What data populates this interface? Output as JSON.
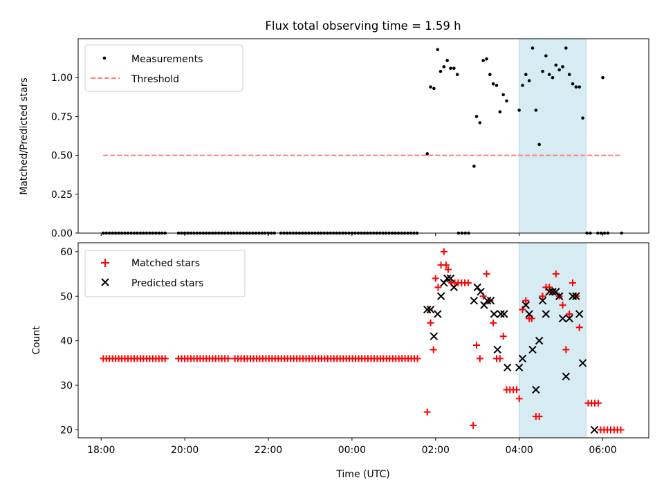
{
  "chart_data": [
    {
      "type": "scatter",
      "title": "Flux total observing time = 1.59 h",
      "xlabel": "",
      "ylabel": "Matched/Predicted stars",
      "xlim": [
        -0.55,
        13.1
      ],
      "ylim": [
        0,
        1.25
      ],
      "yticks": [
        0,
        0.25,
        0.5,
        0.75,
        1.0
      ],
      "ytick_labels": [
        "0.00",
        "0.25",
        "0.50",
        "0.75",
        "1.00"
      ],
      "xticks": [
        0,
        2,
        4,
        6,
        8,
        10,
        12
      ],
      "legend": {
        "position": "top-left",
        "entries": [
          "Measurements",
          "Threshold"
        ]
      },
      "shaded_region": {
        "x_start": 10.0,
        "x_end": 11.6,
        "color": "#add8e6"
      },
      "threshold": {
        "name": "Threshold",
        "y": 0.5,
        "x_start": 0.05,
        "x_end": 12.45,
        "color": "#ff7f7f"
      },
      "series": [
        {
          "name": "Measurements",
          "color": "#000000",
          "marker": "dot",
          "zero_run_segments": [
            [
              0.05,
              1.6
            ],
            [
              1.85,
              4.2
            ],
            [
              4.3,
              7.6
            ]
          ],
          "zero_run_step": 0.074,
          "zero_points": [
            8.55,
            8.63,
            8.71,
            8.79,
            11.62,
            11.7,
            11.88,
            11.96,
            12.04,
            12.12,
            12.45
          ],
          "points": [
            [
              7.8,
              0.51
            ],
            [
              7.88,
              0.94
            ],
            [
              7.96,
              0.93
            ],
            [
              8.05,
              1.18
            ],
            [
              8.12,
              1.04
            ],
            [
              8.2,
              1.07
            ],
            [
              8.28,
              1.11
            ],
            [
              8.36,
              1.06
            ],
            [
              8.44,
              1.06
            ],
            [
              8.52,
              1.02
            ],
            [
              8.92,
              0.43
            ],
            [
              8.98,
              0.75
            ],
            [
              9.06,
              0.71
            ],
            [
              9.14,
              1.11
            ],
            [
              9.22,
              1.12
            ],
            [
              9.3,
              1.02
            ],
            [
              9.38,
              0.96
            ],
            [
              9.46,
              0.95
            ],
            [
              9.54,
              0.78
            ],
            [
              9.62,
              0.89
            ],
            [
              9.7,
              0.85
            ],
            [
              10.0,
              0.79
            ],
            [
              10.08,
              0.95
            ],
            [
              10.16,
              1.02
            ],
            [
              10.24,
              0.98
            ],
            [
              10.32,
              1.19
            ],
            [
              10.4,
              0.79
            ],
            [
              10.48,
              0.57
            ],
            [
              10.56,
              1.04
            ],
            [
              10.64,
              1.14
            ],
            [
              10.72,
              1.02
            ],
            [
              10.8,
              1.0
            ],
            [
              10.88,
              1.08
            ],
            [
              10.96,
              1.05
            ],
            [
              11.04,
              1.07
            ],
            [
              11.12,
              1.19
            ],
            [
              11.2,
              1.02
            ],
            [
              11.28,
              0.96
            ],
            [
              11.36,
              0.94
            ],
            [
              11.44,
              0.94
            ],
            [
              11.52,
              0.74
            ],
            [
              12.0,
              1.0
            ]
          ]
        }
      ]
    },
    {
      "type": "scatter",
      "title": "",
      "xlabel": "Time (UTC)",
      "ylabel": "Count",
      "xlim": [
        -0.55,
        13.1
      ],
      "ylim": [
        18.2,
        62
      ],
      "yticks": [
        20,
        30,
        40,
        50,
        60
      ],
      "ytick_labels": [
        "20",
        "30",
        "40",
        "50",
        "60"
      ],
      "xticks": [
        0,
        2,
        4,
        6,
        8,
        10,
        12
      ],
      "xtick_labels": [
        "18:00",
        "20:00",
        "22:00",
        "00:00",
        "02:00",
        "04:00",
        "06:00"
      ],
      "legend": {
        "position": "top-left",
        "entries": [
          "Matched stars",
          "Predicted stars"
        ]
      },
      "shaded_region": {
        "x_start": 10.0,
        "x_end": 11.6,
        "color": "#add8e6"
      },
      "series": [
        {
          "name": "Matched stars",
          "color": "#ff0000",
          "marker": "plus",
          "constant_runs": [
            {
              "x_start": 0.05,
              "x_end": 1.6,
              "step": 0.074,
              "y": 36
            },
            {
              "x_start": 1.85,
              "x_end": 3.1,
              "step": 0.074,
              "y": 36
            },
            {
              "x_start": 3.2,
              "x_end": 7.6,
              "step": 0.074,
              "y": 36
            },
            {
              "x_start": 11.65,
              "x_end": 11.9,
              "step": 0.08,
              "y": 26
            },
            {
              "x_start": 11.95,
              "x_end": 12.45,
              "step": 0.08,
              "y": 20
            }
          ],
          "points": [
            [
              7.8,
              24
            ],
            [
              7.85,
              47
            ],
            [
              7.88,
              44
            ],
            [
              7.95,
              38
            ],
            [
              8.0,
              54
            ],
            [
              8.06,
              52
            ],
            [
              8.13,
              57
            ],
            [
              8.2,
              60
            ],
            [
              8.25,
              57
            ],
            [
              8.3,
              56
            ],
            [
              8.38,
              53
            ],
            [
              8.46,
              53
            ],
            [
              8.54,
              53
            ],
            [
              8.62,
              53
            ],
            [
              8.7,
              53
            ],
            [
              8.78,
              53
            ],
            [
              8.9,
              21
            ],
            [
              8.98,
              39
            ],
            [
              9.06,
              36
            ],
            [
              9.14,
              50
            ],
            [
              9.22,
              55
            ],
            [
              9.3,
              49
            ],
            [
              9.38,
              44
            ],
            [
              9.46,
              36
            ],
            [
              9.54,
              36
            ],
            [
              9.62,
              41
            ],
            [
              9.7,
              29
            ],
            [
              9.78,
              29
            ],
            [
              9.86,
              29
            ],
            [
              9.94,
              29
            ],
            [
              10.0,
              27
            ],
            [
              10.08,
              47
            ],
            [
              10.16,
              49
            ],
            [
              10.24,
              45
            ],
            [
              10.3,
              45
            ],
            [
              10.4,
              23
            ],
            [
              10.48,
              23
            ],
            [
              10.56,
              50
            ],
            [
              10.64,
              52
            ],
            [
              10.72,
              52
            ],
            [
              10.8,
              51
            ],
            [
              10.88,
              55
            ],
            [
              10.96,
              50
            ],
            [
              11.04,
              48
            ],
            [
              11.12,
              38
            ],
            [
              11.2,
              46
            ],
            [
              11.28,
              53
            ],
            [
              11.36,
              50
            ],
            [
              11.44,
              43
            ]
          ]
        },
        {
          "name": "Predicted stars",
          "color": "#000000",
          "marker": "x",
          "points": [
            [
              7.8,
              47
            ],
            [
              7.88,
              47
            ],
            [
              7.96,
              41
            ],
            [
              8.05,
              46
            ],
            [
              8.13,
              50
            ],
            [
              8.2,
              53
            ],
            [
              8.28,
              54
            ],
            [
              8.36,
              54
            ],
            [
              8.44,
              52
            ],
            [
              8.92,
              49
            ],
            [
              9.0,
              52
            ],
            [
              9.08,
              51
            ],
            [
              9.16,
              48
            ],
            [
              9.24,
              49
            ],
            [
              9.32,
              49
            ],
            [
              9.4,
              46
            ],
            [
              9.48,
              38
            ],
            [
              9.56,
              46
            ],
            [
              9.64,
              46
            ],
            [
              9.72,
              34
            ],
            [
              10.0,
              34
            ],
            [
              10.08,
              36
            ],
            [
              10.16,
              48
            ],
            [
              10.24,
              46
            ],
            [
              10.32,
              38
            ],
            [
              10.4,
              29
            ],
            [
              10.48,
              40
            ],
            [
              10.56,
              49
            ],
            [
              10.64,
              46
            ],
            [
              10.72,
              51
            ],
            [
              10.8,
              51
            ],
            [
              10.88,
              51
            ],
            [
              10.96,
              50
            ],
            [
              11.04,
              45
            ],
            [
              11.12,
              32
            ],
            [
              11.2,
              45
            ],
            [
              11.28,
              50
            ],
            [
              11.36,
              50
            ],
            [
              11.44,
              46
            ],
            [
              11.52,
              35
            ],
            [
              11.8,
              20
            ]
          ]
        }
      ]
    }
  ]
}
